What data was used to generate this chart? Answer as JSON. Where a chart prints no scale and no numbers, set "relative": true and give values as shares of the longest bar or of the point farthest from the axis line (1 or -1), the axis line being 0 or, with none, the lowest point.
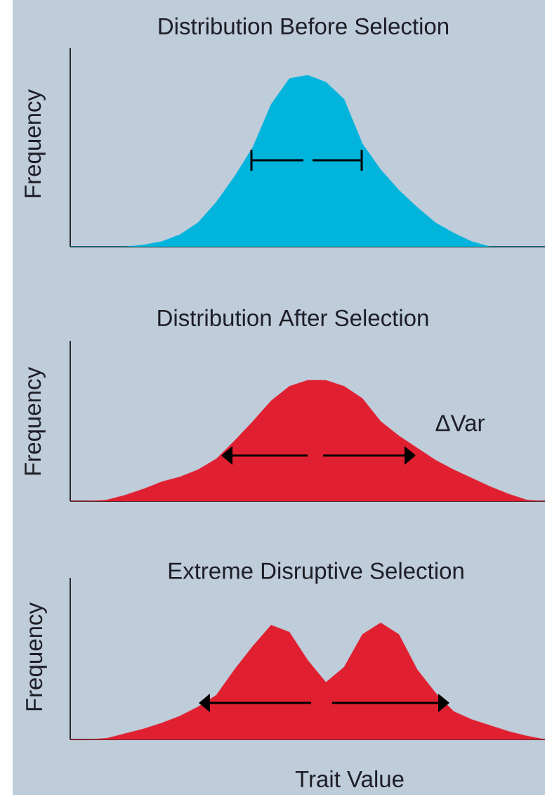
{
  "chart_data": [
    {
      "type": "area",
      "relative": true,
      "title": "Distribution Before Selection",
      "ylabel": "Frequency",
      "color": "#00b4dc",
      "categories": [
        null,
        null,
        null,
        null,
        null,
        null,
        null,
        null,
        null,
        null,
        null,
        null,
        null,
        null,
        null,
        null,
        null,
        null,
        null,
        null,
        null,
        null,
        null,
        null,
        null,
        null,
        null
      ],
      "values": [
        0,
        0,
        0,
        0,
        0.01,
        0.03,
        0.07,
        0.14,
        0.26,
        0.41,
        0.58,
        0.83,
        0.98,
        1.0,
        0.96,
        0.86,
        0.6,
        0.45,
        0.33,
        0.23,
        0.14,
        0.08,
        0.03,
        0,
        0,
        0,
        0
      ]
    },
    {
      "type": "area",
      "relative": true,
      "title": "Distribution After Selection",
      "ylabel": "Frequency",
      "color": "#e02030",
      "annotations": [
        "ΔVar"
      ],
      "categories": [
        null,
        null,
        null,
        null,
        null,
        null,
        null,
        null,
        null,
        null,
        null,
        null,
        null,
        null,
        null,
        null,
        null,
        null,
        null,
        null,
        null,
        null,
        null,
        null,
        null,
        null,
        null
      ],
      "values": [
        0,
        0,
        0.01,
        0.05,
        0.1,
        0.16,
        0.2,
        0.26,
        0.35,
        0.5,
        0.66,
        0.83,
        0.95,
        1.0,
        1.0,
        0.95,
        0.85,
        0.66,
        0.54,
        0.44,
        0.34,
        0.26,
        0.19,
        0.12,
        0.06,
        0.01,
        0
      ]
    },
    {
      "type": "area",
      "relative": true,
      "title": "Extreme Disruptive Selection",
      "ylabel": "Frequency",
      "xlabel": "Trait Value",
      "color": "#e02030",
      "categories": [
        null,
        null,
        null,
        null,
        null,
        null,
        null,
        null,
        null,
        null,
        null,
        null,
        null,
        null,
        null,
        null,
        null,
        null,
        null,
        null,
        null,
        null,
        null,
        null,
        null,
        null,
        null
      ],
      "values": [
        0,
        0,
        0.01,
        0.05,
        0.09,
        0.14,
        0.2,
        0.28,
        0.38,
        0.6,
        0.8,
        0.98,
        0.92,
        0.68,
        0.49,
        0.62,
        0.9,
        1.0,
        0.9,
        0.6,
        0.4,
        0.24,
        0.17,
        0.12,
        0.07,
        0.03,
        0
      ]
    }
  ]
}
